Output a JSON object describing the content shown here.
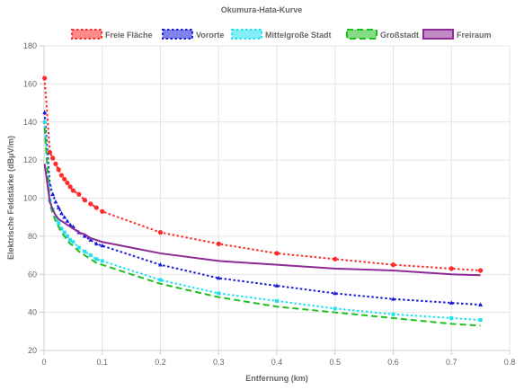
{
  "chart_data": {
    "type": "line",
    "title": "Okumura-Hata-Kurve",
    "xlabel": "Entfernung (km)",
    "ylabel": "Elektrische Feldstärke (dBμV/m)",
    "xlim": [
      0,
      0.8
    ],
    "ylim": [
      20,
      180
    ],
    "x_ticks": [
      0,
      0.1,
      0.2,
      0.3,
      0.4,
      0.5,
      0.6,
      0.7,
      0.8
    ],
    "y_ticks": [
      20,
      40,
      60,
      80,
      100,
      120,
      140,
      160,
      180
    ],
    "x_tick_labels": [
      "0",
      "0.1",
      "0.2",
      "0.3",
      "0.4",
      "0.5",
      "0.6",
      "0.7",
      "0.8"
    ],
    "y_tick_labels": [
      "20",
      "40",
      "60",
      "80",
      "100",
      "120",
      "140",
      "160",
      "180"
    ],
    "grid": true,
    "legend_position": "top",
    "series": [
      {
        "name": "Freie Fläche",
        "color": "#ff2a2a",
        "dash": "dotted",
        "marker": "circle",
        "x": [
          0.001,
          0.01,
          0.015,
          0.02,
          0.025,
          0.03,
          0.035,
          0.04,
          0.045,
          0.05,
          0.06,
          0.07,
          0.08,
          0.09,
          0.1,
          0.2,
          0.3,
          0.4,
          0.5,
          0.6,
          0.7,
          0.75
        ],
        "y": [
          163,
          124,
          121,
          118,
          115,
          112,
          110,
          108,
          106,
          104,
          102,
          99,
          97,
          95,
          93,
          82,
          76,
          71,
          68,
          65,
          63,
          62
        ]
      },
      {
        "name": "Vororte",
        "color": "#1a1adb",
        "dash": "dotted",
        "marker": "triangle",
        "x": [
          0.001,
          0.01,
          0.015,
          0.02,
          0.025,
          0.03,
          0.035,
          0.04,
          0.045,
          0.05,
          0.06,
          0.07,
          0.08,
          0.09,
          0.1,
          0.2,
          0.3,
          0.4,
          0.5,
          0.6,
          0.7,
          0.75
        ],
        "y": [
          145,
          107,
          102,
          98,
          95,
          92,
          90,
          88,
          86,
          85,
          82,
          80,
          78,
          76,
          75,
          65,
          58,
          54,
          50,
          47,
          45,
          44
        ]
      },
      {
        "name": "Mittelgroße Stadt",
        "color": "#1fe0f0",
        "dash": "dotted",
        "marker": "square",
        "x": [
          0.001,
          0.01,
          0.015,
          0.02,
          0.025,
          0.03,
          0.035,
          0.04,
          0.045,
          0.05,
          0.06,
          0.07,
          0.08,
          0.09,
          0.1,
          0.2,
          0.3,
          0.4,
          0.5,
          0.6,
          0.7,
          0.75
        ],
        "y": [
          140,
          99,
          94,
          90,
          87,
          84,
          82,
          80,
          78,
          77,
          74,
          72,
          70,
          68,
          67,
          57,
          50,
          46,
          42,
          39,
          37,
          36
        ]
      },
      {
        "name": "Großstadt",
        "color": "#1fbf1f",
        "dash": "dashed",
        "marker": "none",
        "x": [
          0.001,
          0.01,
          0.015,
          0.02,
          0.025,
          0.03,
          0.035,
          0.04,
          0.045,
          0.05,
          0.06,
          0.07,
          0.08,
          0.09,
          0.1,
          0.2,
          0.3,
          0.4,
          0.5,
          0.6,
          0.7,
          0.75
        ],
        "y": [
          137,
          97,
          92,
          88,
          85,
          82,
          80,
          78,
          76,
          75,
          72,
          70,
          68,
          66,
          65,
          55,
          48,
          43,
          40,
          37,
          34,
          33
        ]
      },
      {
        "name": "Freiraum",
        "color": "#8e2a96",
        "dash": "solid",
        "marker": "none",
        "x": [
          0.001,
          0.01,
          0.015,
          0.02,
          0.025,
          0.03,
          0.04,
          0.05,
          0.06,
          0.07,
          0.08,
          0.1,
          0.2,
          0.3,
          0.4,
          0.5,
          0.6,
          0.7,
          0.75
        ],
        "y": [
          118,
          98,
          94,
          91,
          89,
          88,
          86,
          84,
          82,
          81,
          79,
          77,
          71,
          67,
          65,
          63,
          62,
          60,
          59.5
        ]
      }
    ]
  }
}
